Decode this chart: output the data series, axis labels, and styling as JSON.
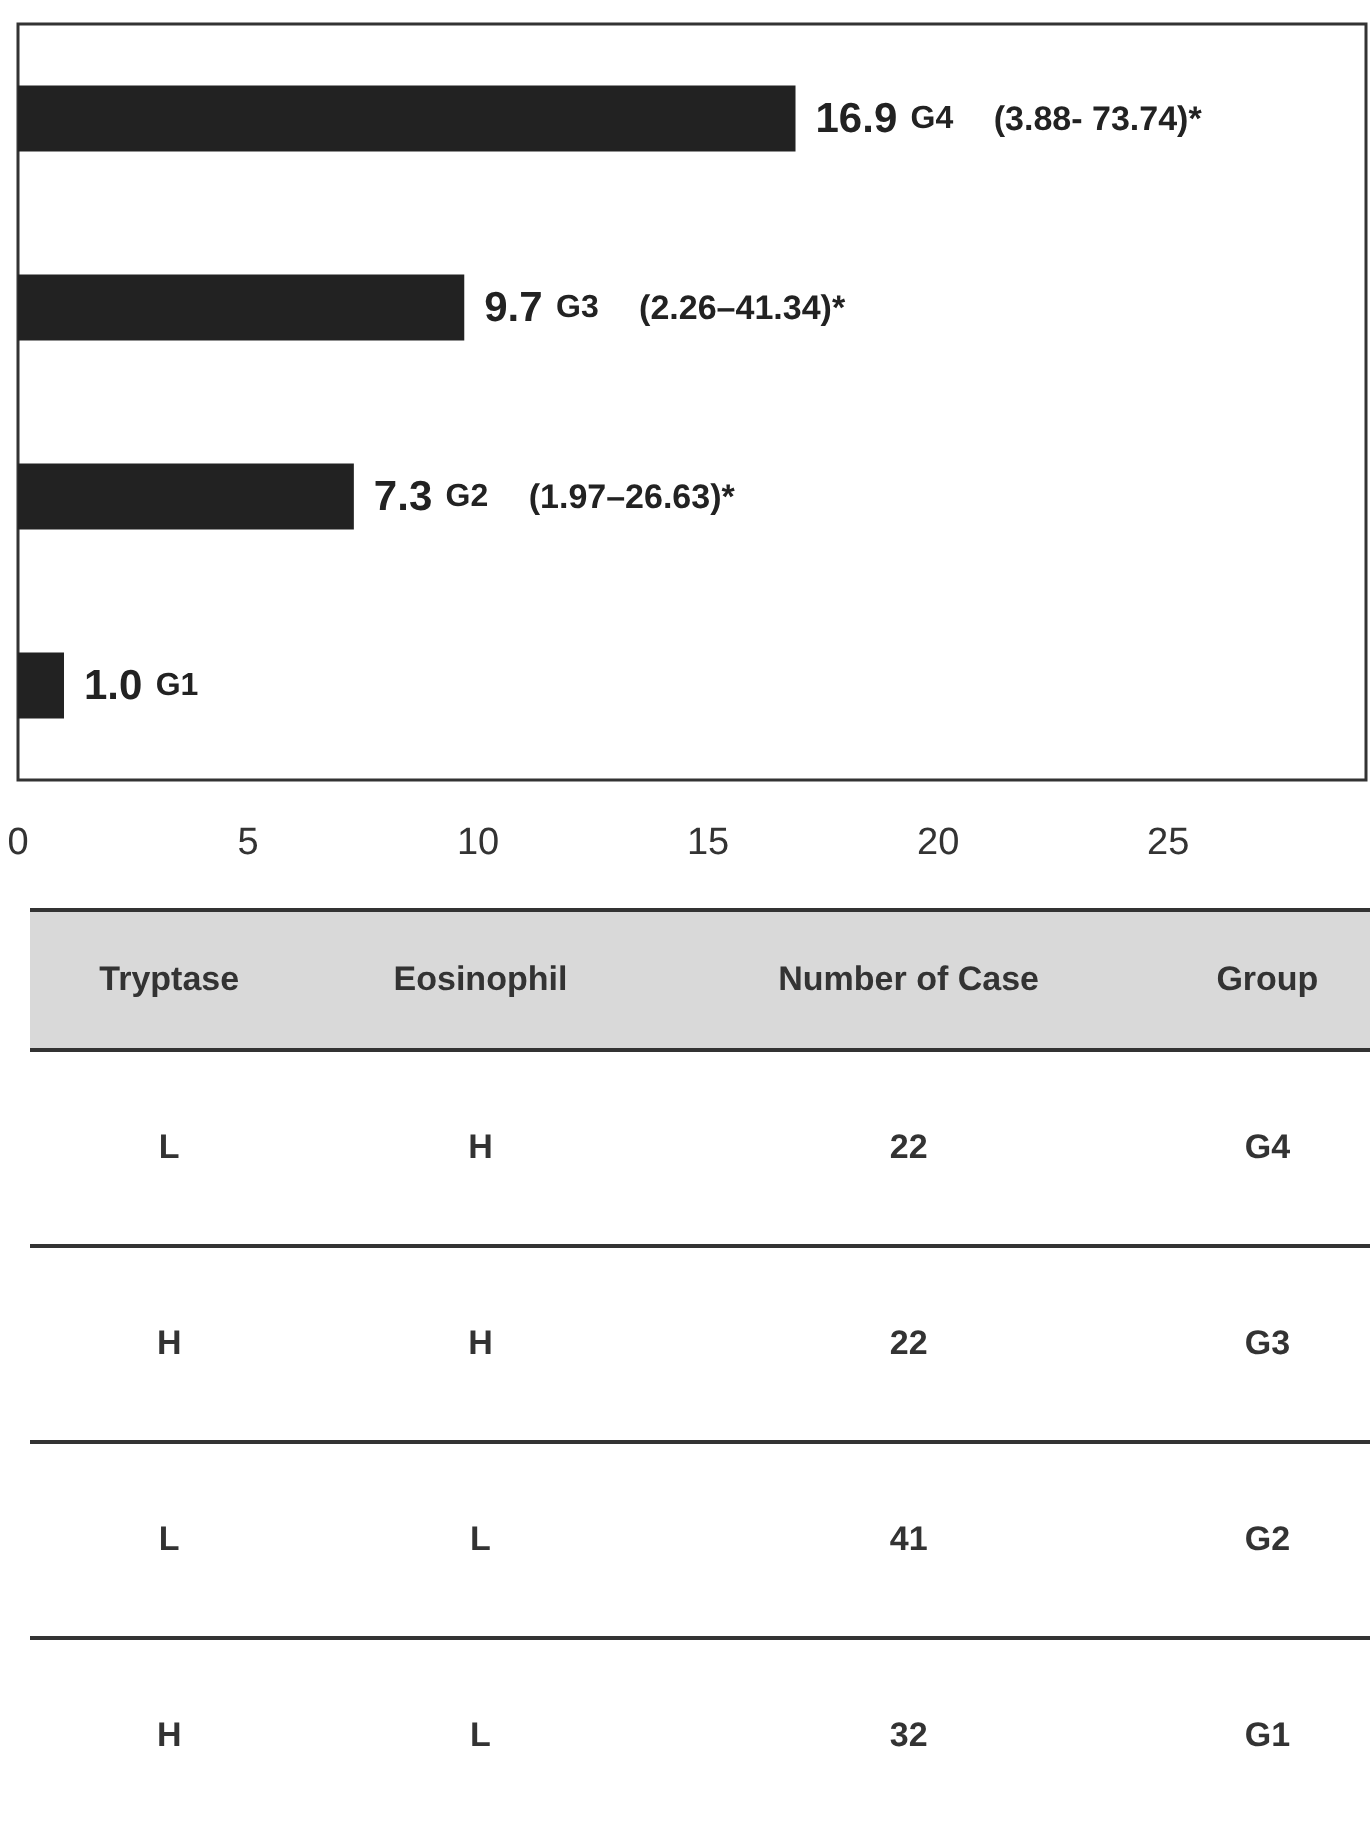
{
  "chart_data": [
    {
      "type": "bar",
      "orientation": "horizontal",
      "categories": [
        "G4",
        "G3",
        "G2",
        "G1"
      ],
      "values": [
        16.9,
        9.7,
        7.3,
        1.0
      ],
      "color": "#222222",
      "value_labels": [
        "16.9",
        "9.7",
        "7.3",
        "1.0"
      ],
      "xlim": [
        0,
        29.3
      ],
      "xticks": [
        0,
        5,
        10,
        15,
        20,
        25
      ],
      "grid": false,
      "annotations": [
        "(3.88- 73.74)*",
        "(2.26–41.34)*",
        "(1.97–26.63)*"
      ]
    },
    {
      "type": "other",
      "categories": [
        "Tryptase",
        "Eosinophil",
        "Number of Case",
        "Group"
      ],
      "cell_labels": [
        [
          "L",
          "H",
          "22",
          "G4"
        ],
        [
          "H",
          "H",
          "22",
          "G3"
        ],
        [
          "L",
          "L",
          "41",
          "G2"
        ],
        [
          "H",
          "L",
          "32",
          "G1"
        ]
      ]
    }
  ]
}
